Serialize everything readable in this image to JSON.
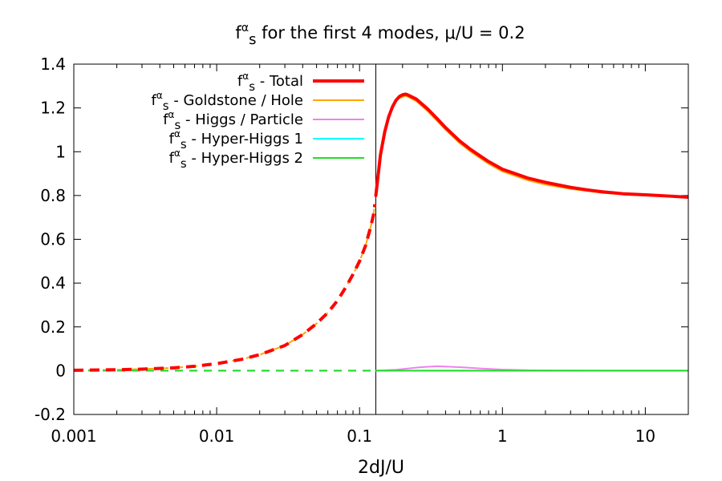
{
  "chart_data": {
    "type": "line",
    "title": {
      "base": "f",
      "sup": "α",
      "sub": "s",
      "rest": " for the first 4 modes, μ/U = 0.2"
    },
    "xlabel": "2dJ/U",
    "ylabel": "",
    "xscale": "log",
    "xlim": [
      0.001,
      20
    ],
    "ylim": [
      -0.2,
      1.4
    ],
    "x_ticks": [
      {
        "value": 0.001,
        "label": "0.001"
      },
      {
        "value": 0.01,
        "label": "0.01"
      },
      {
        "value": 0.1,
        "label": "0.1"
      },
      {
        "value": 1,
        "label": "1"
      },
      {
        "value": 10,
        "label": "10"
      }
    ],
    "y_ticks": [
      {
        "value": -0.2,
        "label": "-0.2"
      },
      {
        "value": 0,
        "label": "0"
      },
      {
        "value": 0.2,
        "label": "0.2"
      },
      {
        "value": 0.4,
        "label": "0.4"
      },
      {
        "value": 0.6,
        "label": "0.6"
      },
      {
        "value": 0.8,
        "label": "0.8"
      },
      {
        "value": 1,
        "label": "1"
      },
      {
        "value": 1.2,
        "label": "1.2"
      },
      {
        "value": 1.4,
        "label": "1.4"
      }
    ],
    "critical_x": 0.13,
    "legend_position": "top-left",
    "series": [
      {
        "name": "Goldstone / Hole",
        "legend": {
          "base": "f",
          "sup": "α",
          "sub": "s",
          "rest": " - Goldstone / Hole"
        },
        "color": "#FFA500",
        "width": 2,
        "dashed_segment": {
          "x": [
            0.001,
            0.002,
            0.003,
            0.005,
            0.007,
            0.01,
            0.015,
            0.02,
            0.03,
            0.04,
            0.05,
            0.06,
            0.07,
            0.08,
            0.09,
            0.1,
            0.11,
            0.12,
            0.125,
            0.128
          ],
          "y": [
            0.002,
            0.004,
            0.007,
            0.013,
            0.02,
            0.032,
            0.052,
            0.073,
            0.115,
            0.165,
            0.215,
            0.265,
            0.32,
            0.38,
            0.44,
            0.5,
            0.57,
            0.66,
            0.71,
            0.76
          ]
        },
        "solid_segment": {
          "x": [
            0.13,
            0.14,
            0.15,
            0.16,
            0.17,
            0.18,
            0.19,
            0.2,
            0.21,
            0.22,
            0.25,
            0.3,
            0.35,
            0.4,
            0.5,
            0.6,
            0.7,
            0.8,
            1,
            1.5,
            2,
            3,
            4,
            5,
            7,
            10,
            15,
            20
          ],
          "y": [
            0.8,
            0.98,
            1.08,
            1.15,
            1.2,
            1.23,
            1.245,
            1.25,
            1.255,
            1.25,
            1.23,
            1.185,
            1.14,
            1.1,
            1.04,
            1.0,
            0.97,
            0.945,
            0.91,
            0.87,
            0.85,
            0.83,
            0.82,
            0.812,
            0.805,
            0.8,
            0.797,
            0.792
          ]
        }
      },
      {
        "name": "Higgs / Particle",
        "legend": {
          "base": "f",
          "sup": "α",
          "sub": "s",
          "rest": " - Higgs / Particle"
        },
        "color": "#EE82EE",
        "width": 2,
        "dashed_segment": {
          "x": [
            0.001,
            0.128
          ],
          "y": [
            0,
            0
          ]
        },
        "solid_segment": {
          "x": [
            0.13,
            0.18,
            0.22,
            0.26,
            0.3,
            0.35,
            0.4,
            0.5,
            0.7,
            1,
            1.5,
            2,
            5,
            20
          ],
          "y": [
            0,
            0.004,
            0.01,
            0.015,
            0.018,
            0.02,
            0.019,
            0.016,
            0.01,
            0.005,
            0.002,
            0.001,
            0,
            0
          ]
        }
      },
      {
        "name": "Hyper-Higgs 1",
        "legend": {
          "base": "f",
          "sup": "α",
          "sub": "s",
          "rest": " - Hyper-Higgs 1"
        },
        "color": "#00FFFF",
        "width": 2,
        "dashed_segment": {
          "x": [
            0.001,
            0.128
          ],
          "y": [
            0,
            0
          ]
        },
        "solid_segment": {
          "x": [
            0.13,
            20
          ],
          "y": [
            0,
            0
          ]
        }
      },
      {
        "name": "Hyper-Higgs 2",
        "legend": {
          "base": "f",
          "sup": "α",
          "sub": "s",
          "rest": " - Hyper-Higgs 2"
        },
        "color": "#22DD22",
        "width": 2,
        "dashed_segment": {
          "x": [
            0.001,
            0.128
          ],
          "y": [
            0,
            0
          ]
        },
        "solid_segment": {
          "x": [
            0.13,
            20
          ],
          "y": [
            0,
            0
          ]
        }
      },
      {
        "name": "Total",
        "legend": {
          "base": "f",
          "sup": "α",
          "sub": "s",
          "rest": " - Total"
        },
        "color": "#FF0000",
        "width": 4,
        "dashed_segment": {
          "x": [
            0.001,
            0.002,
            0.003,
            0.005,
            0.007,
            0.01,
            0.015,
            0.02,
            0.03,
            0.04,
            0.05,
            0.06,
            0.07,
            0.08,
            0.09,
            0.1,
            0.11,
            0.12,
            0.125,
            0.128
          ],
          "y": [
            0.002,
            0.004,
            0.007,
            0.013,
            0.02,
            0.032,
            0.052,
            0.073,
            0.115,
            0.165,
            0.215,
            0.265,
            0.32,
            0.38,
            0.44,
            0.5,
            0.57,
            0.66,
            0.71,
            0.76
          ]
        },
        "solid_segment": {
          "x": [
            0.13,
            0.14,
            0.15,
            0.16,
            0.17,
            0.18,
            0.19,
            0.2,
            0.21,
            0.22,
            0.25,
            0.3,
            0.35,
            0.4,
            0.5,
            0.6,
            0.7,
            0.8,
            1,
            1.5,
            2,
            3,
            4,
            5,
            7,
            10,
            15,
            20
          ],
          "y": [
            0.8,
            0.985,
            1.09,
            1.16,
            1.205,
            1.235,
            1.252,
            1.26,
            1.263,
            1.258,
            1.24,
            1.195,
            1.15,
            1.11,
            1.05,
            1.01,
            0.98,
            0.955,
            0.92,
            0.88,
            0.86,
            0.837,
            0.825,
            0.817,
            0.808,
            0.803,
            0.797,
            0.792
          ]
        }
      }
    ],
    "legend_order": [
      "Total",
      "Goldstone / Hole",
      "Higgs / Particle",
      "Hyper-Higgs 1",
      "Hyper-Higgs 2"
    ]
  }
}
